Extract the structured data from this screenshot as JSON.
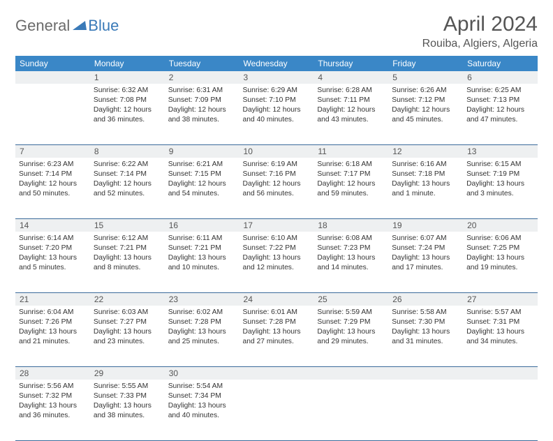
{
  "logo": {
    "text1": "General",
    "text2": "Blue",
    "color1": "#6b6b6b",
    "color2": "#3a7ab8"
  },
  "title": "April 2024",
  "location": "Rouiba, Algiers, Algeria",
  "headers": [
    "Sunday",
    "Monday",
    "Tuesday",
    "Wednesday",
    "Thursday",
    "Friday",
    "Saturday"
  ],
  "style": {
    "header_bg": "#3a87c7",
    "header_fg": "#ffffff",
    "daynum_bg": "#eef0f1",
    "row_border": "#3a6a9a",
    "font_body": 10.3,
    "font_header": 12,
    "font_title": 30,
    "font_location": 16
  },
  "weeks": [
    {
      "nums": [
        "",
        "1",
        "2",
        "3",
        "4",
        "5",
        "6"
      ],
      "cells": [
        null,
        {
          "sunrise": "6:32 AM",
          "sunset": "7:08 PM",
          "daylight": "12 hours and 36 minutes."
        },
        {
          "sunrise": "6:31 AM",
          "sunset": "7:09 PM",
          "daylight": "12 hours and 38 minutes."
        },
        {
          "sunrise": "6:29 AM",
          "sunset": "7:10 PM",
          "daylight": "12 hours and 40 minutes."
        },
        {
          "sunrise": "6:28 AM",
          "sunset": "7:11 PM",
          "daylight": "12 hours and 43 minutes."
        },
        {
          "sunrise": "6:26 AM",
          "sunset": "7:12 PM",
          "daylight": "12 hours and 45 minutes."
        },
        {
          "sunrise": "6:25 AM",
          "sunset": "7:13 PM",
          "daylight": "12 hours and 47 minutes."
        }
      ]
    },
    {
      "nums": [
        "7",
        "8",
        "9",
        "10",
        "11",
        "12",
        "13"
      ],
      "cells": [
        {
          "sunrise": "6:23 AM",
          "sunset": "7:14 PM",
          "daylight": "12 hours and 50 minutes."
        },
        {
          "sunrise": "6:22 AM",
          "sunset": "7:14 PM",
          "daylight": "12 hours and 52 minutes."
        },
        {
          "sunrise": "6:21 AM",
          "sunset": "7:15 PM",
          "daylight": "12 hours and 54 minutes."
        },
        {
          "sunrise": "6:19 AM",
          "sunset": "7:16 PM",
          "daylight": "12 hours and 56 minutes."
        },
        {
          "sunrise": "6:18 AM",
          "sunset": "7:17 PM",
          "daylight": "12 hours and 59 minutes."
        },
        {
          "sunrise": "6:16 AM",
          "sunset": "7:18 PM",
          "daylight": "13 hours and 1 minute."
        },
        {
          "sunrise": "6:15 AM",
          "sunset": "7:19 PM",
          "daylight": "13 hours and 3 minutes."
        }
      ]
    },
    {
      "nums": [
        "14",
        "15",
        "16",
        "17",
        "18",
        "19",
        "20"
      ],
      "cells": [
        {
          "sunrise": "6:14 AM",
          "sunset": "7:20 PM",
          "daylight": "13 hours and 5 minutes."
        },
        {
          "sunrise": "6:12 AM",
          "sunset": "7:21 PM",
          "daylight": "13 hours and 8 minutes."
        },
        {
          "sunrise": "6:11 AM",
          "sunset": "7:21 PM",
          "daylight": "13 hours and 10 minutes."
        },
        {
          "sunrise": "6:10 AM",
          "sunset": "7:22 PM",
          "daylight": "13 hours and 12 minutes."
        },
        {
          "sunrise": "6:08 AM",
          "sunset": "7:23 PM",
          "daylight": "13 hours and 14 minutes."
        },
        {
          "sunrise": "6:07 AM",
          "sunset": "7:24 PM",
          "daylight": "13 hours and 17 minutes."
        },
        {
          "sunrise": "6:06 AM",
          "sunset": "7:25 PM",
          "daylight": "13 hours and 19 minutes."
        }
      ]
    },
    {
      "nums": [
        "21",
        "22",
        "23",
        "24",
        "25",
        "26",
        "27"
      ],
      "cells": [
        {
          "sunrise": "6:04 AM",
          "sunset": "7:26 PM",
          "daylight": "13 hours and 21 minutes."
        },
        {
          "sunrise": "6:03 AM",
          "sunset": "7:27 PM",
          "daylight": "13 hours and 23 minutes."
        },
        {
          "sunrise": "6:02 AM",
          "sunset": "7:28 PM",
          "daylight": "13 hours and 25 minutes."
        },
        {
          "sunrise": "6:01 AM",
          "sunset": "7:28 PM",
          "daylight": "13 hours and 27 minutes."
        },
        {
          "sunrise": "5:59 AM",
          "sunset": "7:29 PM",
          "daylight": "13 hours and 29 minutes."
        },
        {
          "sunrise": "5:58 AM",
          "sunset": "7:30 PM",
          "daylight": "13 hours and 31 minutes."
        },
        {
          "sunrise": "5:57 AM",
          "sunset": "7:31 PM",
          "daylight": "13 hours and 34 minutes."
        }
      ]
    },
    {
      "nums": [
        "28",
        "29",
        "30",
        "",
        "",
        "",
        ""
      ],
      "cells": [
        {
          "sunrise": "5:56 AM",
          "sunset": "7:32 PM",
          "daylight": "13 hours and 36 minutes."
        },
        {
          "sunrise": "5:55 AM",
          "sunset": "7:33 PM",
          "daylight": "13 hours and 38 minutes."
        },
        {
          "sunrise": "5:54 AM",
          "sunset": "7:34 PM",
          "daylight": "13 hours and 40 minutes."
        },
        null,
        null,
        null,
        null
      ]
    }
  ],
  "labels": {
    "sunrise": "Sunrise:",
    "sunset": "Sunset:",
    "daylight": "Daylight:"
  }
}
